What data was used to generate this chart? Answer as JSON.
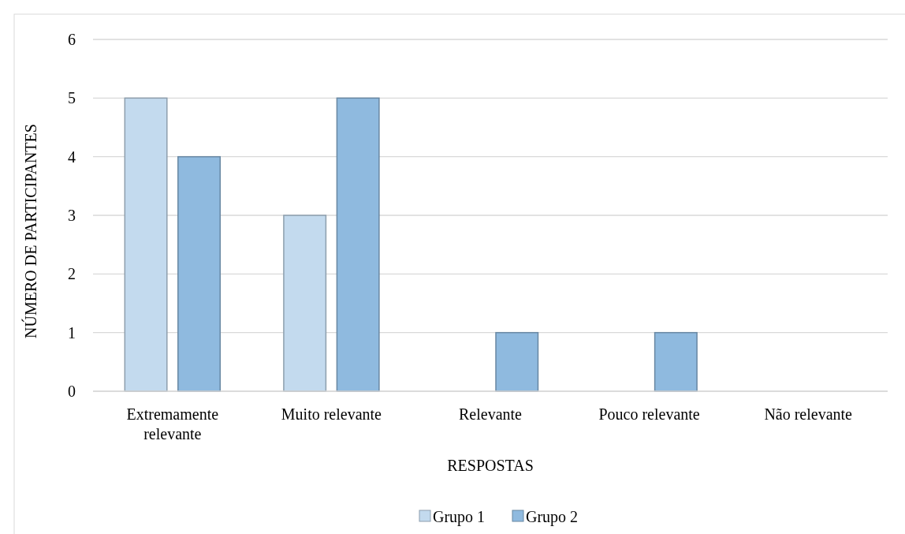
{
  "chart_data": {
    "type": "bar",
    "xlabel": "RESPOSTAS",
    "ylabel": "NÚMERO DE PARTICIPANTES",
    "categories": [
      "Extremamente relevante",
      "Muito relevante",
      "Relevante",
      "Pouco relevante",
      "Não relevante"
    ],
    "series": [
      {
        "name": "Grupo 1",
        "color": "#c3daee",
        "values": [
          5,
          3,
          0,
          0,
          0
        ]
      },
      {
        "name": "Grupo 2",
        "color": "#8fbadf",
        "values": [
          4,
          5,
          1,
          1,
          0
        ]
      }
    ],
    "ylim": [
      0,
      6
    ],
    "yticks": [
      0,
      1,
      2,
      3,
      4,
      5,
      6
    ],
    "grid": "y",
    "legend": "bottom"
  }
}
